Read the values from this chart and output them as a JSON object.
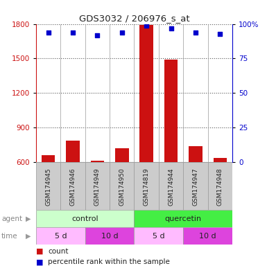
{
  "title": "GDS3032 / 206976_s_at",
  "samples": [
    "GSM174945",
    "GSM174946",
    "GSM174949",
    "GSM174950",
    "GSM174819",
    "GSM174944",
    "GSM174947",
    "GSM174948"
  ],
  "counts": [
    660,
    790,
    615,
    720,
    1790,
    1490,
    740,
    640
  ],
  "percentile_ranks": [
    94,
    94,
    92,
    94,
    99,
    97,
    94,
    93
  ],
  "ylim_left": [
    600,
    1800
  ],
  "ylim_right": [
    0,
    100
  ],
  "yticks_left": [
    600,
    900,
    1200,
    1500,
    1800
  ],
  "yticks_right": [
    0,
    25,
    50,
    75,
    100
  ],
  "bar_color": "#cc1111",
  "dot_color": "#0000cc",
  "agent_labels": [
    {
      "label": "control",
      "start": 0,
      "end": 4,
      "color": "#ccffcc"
    },
    {
      "label": "quercetin",
      "start": 4,
      "end": 8,
      "color": "#44ee44"
    }
  ],
  "time_labels": [
    {
      "label": "5 d",
      "start": 0,
      "end": 2,
      "color": "#ffbbff"
    },
    {
      "label": "10 d",
      "start": 2,
      "end": 4,
      "color": "#dd44dd"
    },
    {
      "label": "5 d",
      "start": 4,
      "end": 6,
      "color": "#ffbbff"
    },
    {
      "label": "10 d",
      "start": 6,
      "end": 8,
      "color": "#dd44dd"
    }
  ],
  "left_axis_color": "#cc1111",
  "right_axis_color": "#0000cc",
  "background_color": "#ffffff",
  "sample_box_color": "#cccccc",
  "sample_box_edge": "#999999",
  "legend_count_color": "#cc1111",
  "legend_pct_color": "#0000cc",
  "side_label_color": "#888888",
  "grid_color": "#555555"
}
